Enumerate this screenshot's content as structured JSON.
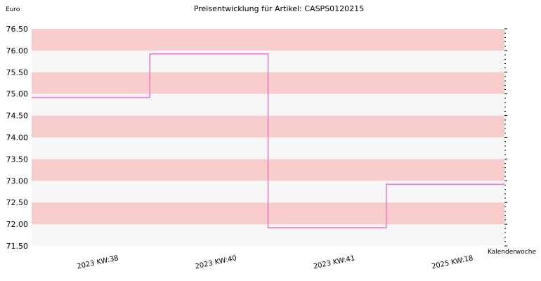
{
  "chart_data": {
    "type": "line",
    "title": "Preisentwicklung für Artikel: CASPS0120215",
    "ylabel": "Euro",
    "xlabel": "Kalenderwoche",
    "ylim": [
      71.5,
      76.5
    ],
    "yticks": [
      "71.50",
      "72.00",
      "72.50",
      "73.00",
      "73.50",
      "74.00",
      "74.50",
      "75.00",
      "75.50",
      "76.00",
      "76.50"
    ],
    "categories": [
      "2023 KW:38",
      "2023 KW:40",
      "2023 KW:41",
      "2025 KW:18"
    ],
    "series": [
      {
        "values": [
          74.92,
          75.92,
          71.92,
          72.92
        ]
      }
    ],
    "line_style": "step",
    "colors": {
      "line": "#ee77cc",
      "band_a": "#f9cccc",
      "band_b": "#f7f7f7"
    }
  }
}
